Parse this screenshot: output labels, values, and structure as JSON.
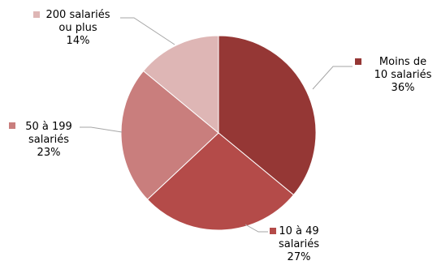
{
  "chart_data": {
    "type": "pie",
    "title": "",
    "start_angle_deg": 0,
    "direction": "clockwise",
    "slices": [
      {
        "label_lines": [
          "Moins de",
          "10 salariés"
        ],
        "value": 36,
        "value_label": "36%",
        "color": "#953735"
      },
      {
        "label_lines": [
          "10 à 49",
          "salariés"
        ],
        "value": 27,
        "value_label": "27%",
        "color": "#b44b49"
      },
      {
        "label_lines": [
          "50 à 199",
          "salariés"
        ],
        "value": 23,
        "value_label": "23%",
        "color": "#c97e7d"
      },
      {
        "label_lines": [
          "200 salariés",
          "ou plus"
        ],
        "value": 14,
        "value_label": "14%",
        "color": "#deb6b5"
      }
    ],
    "legend": "none",
    "data_labels": "outside-with-leader-lines"
  }
}
